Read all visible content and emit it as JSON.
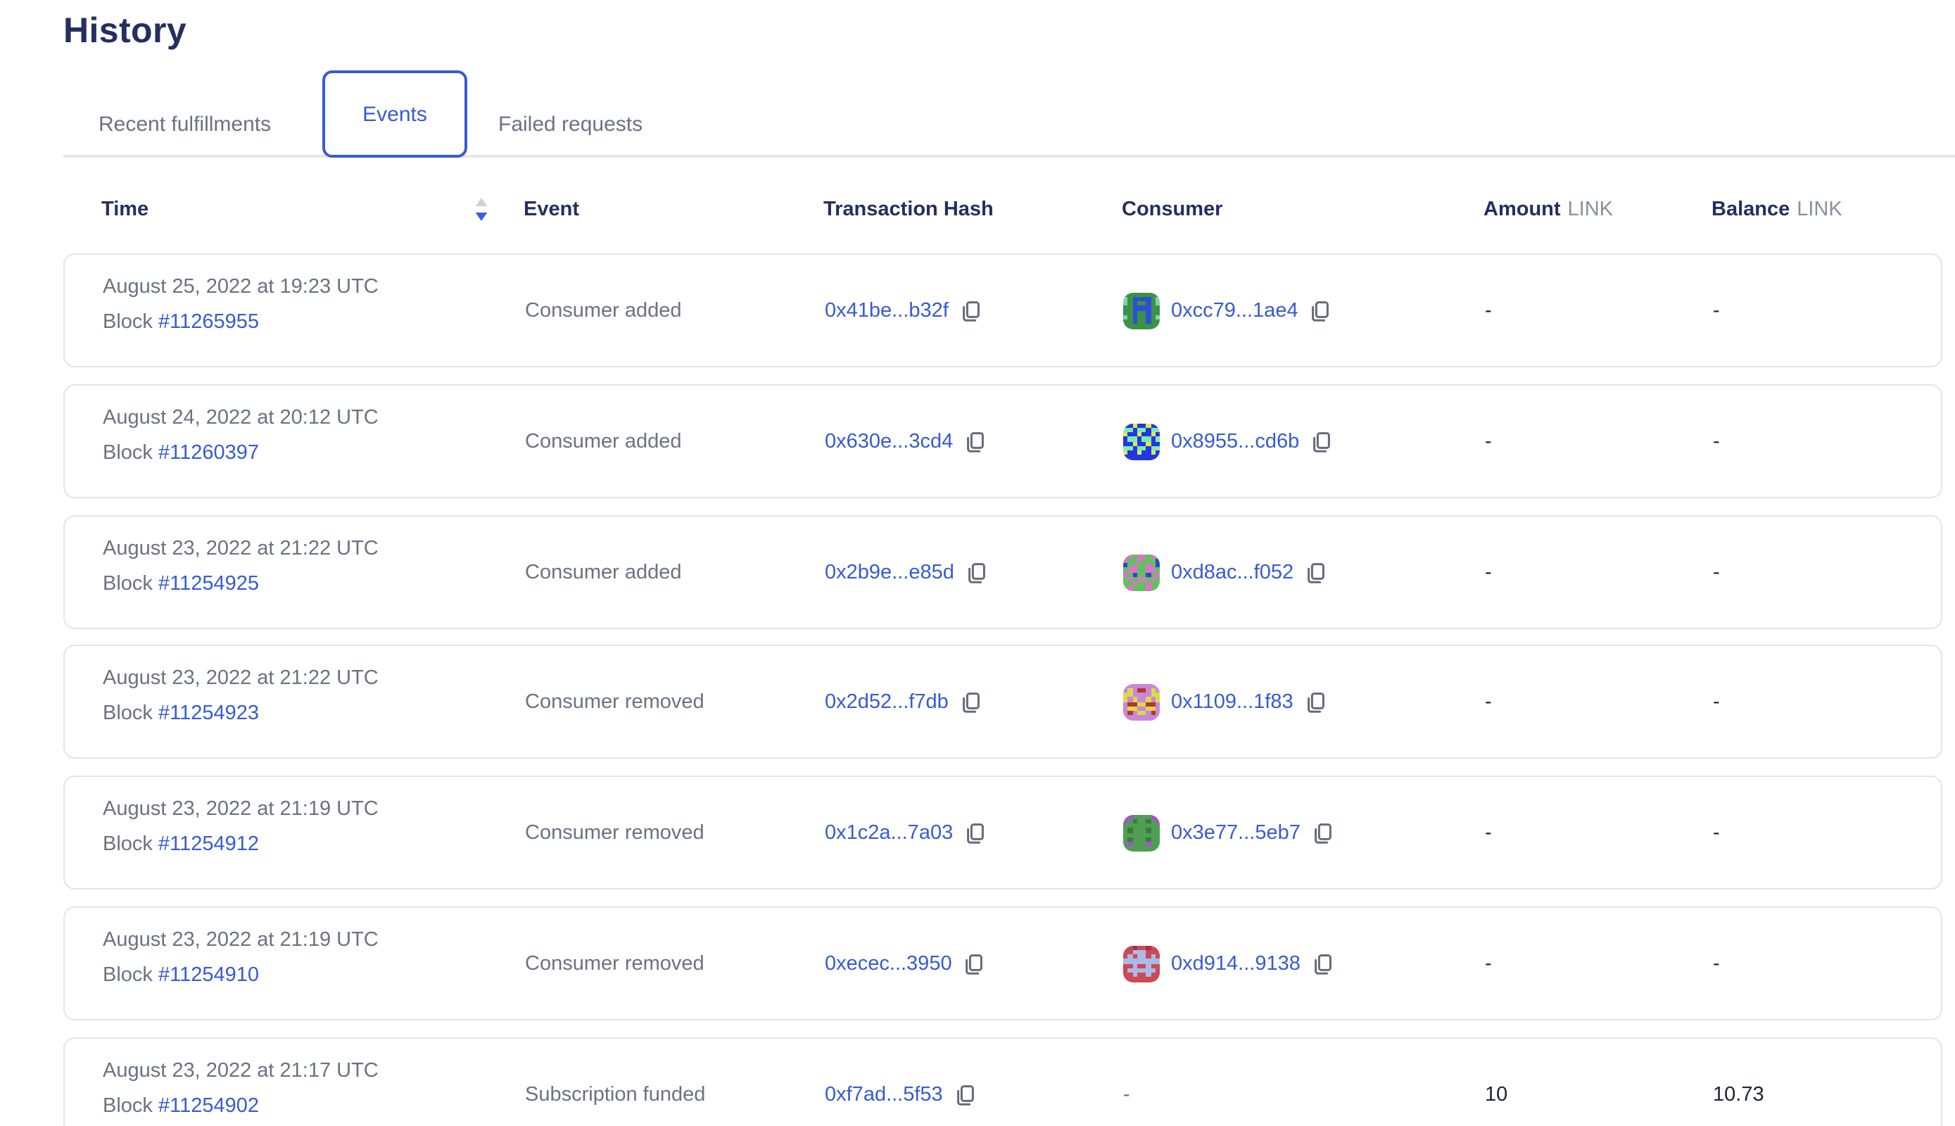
{
  "page": {
    "title": "History"
  },
  "colors": {
    "accent_blue": "#375bd2",
    "heading_navy": "#252e61",
    "muted_gray": "#6b7280",
    "unit_gray": "#8a909d",
    "value_dark": "#1c2433",
    "card_border": "#e3e5e9"
  },
  "tabs": [
    {
      "label": "Recent fulfillments",
      "active": false
    },
    {
      "label": "Events",
      "active": true
    },
    {
      "label": "Failed requests",
      "active": false
    }
  ],
  "table": {
    "headers": {
      "time": "Time",
      "event": "Event",
      "tx": "Transaction Hash",
      "consumer": "Consumer",
      "amount": "Amount",
      "balance": "Balance",
      "unit": "LINK"
    },
    "sort": {
      "column": "Time",
      "direction": "desc"
    },
    "rows": [
      {
        "date": "August 25, 2022 at 19:23 UTC",
        "block_label": "Block",
        "block": "#11265955",
        "event": "Consumer added",
        "tx": "0x41be...b32f",
        "consumer": "0xcc79...1ae4",
        "avatar": "a1",
        "amount": "-",
        "balance": "-"
      },
      {
        "date": "August 24, 2022 at 20:12 UTC",
        "block_label": "Block",
        "block": "#11260397",
        "event": "Consumer added",
        "tx": "0x630e...3cd4",
        "consumer": "0x8955...cd6b",
        "avatar": "a2",
        "amount": "-",
        "balance": "-"
      },
      {
        "date": "August 23, 2022 at 21:22 UTC",
        "block_label": "Block",
        "block": "#11254925",
        "event": "Consumer added",
        "tx": "0x2b9e...e85d",
        "consumer": "0xd8ac...f052",
        "avatar": "a3",
        "amount": "-",
        "balance": "-"
      },
      {
        "date": "August 23, 2022 at 21:22 UTC",
        "block_label": "Block",
        "block": "#11254923",
        "event": "Consumer removed",
        "tx": "0x2d52...f7db",
        "consumer": "0x1109...1f83",
        "avatar": "a4",
        "amount": "-",
        "balance": "-"
      },
      {
        "date": "August 23, 2022 at 21:19 UTC",
        "block_label": "Block",
        "block": "#11254912",
        "event": "Consumer removed",
        "tx": "0x1c2a...7a03",
        "consumer": "0x3e77...5eb7",
        "avatar": "a5",
        "amount": "-",
        "balance": "-"
      },
      {
        "date": "August 23, 2022 at 21:19 UTC",
        "block_label": "Block",
        "block": "#11254910",
        "event": "Consumer removed",
        "tx": "0xecec...3950",
        "consumer": "0xd914...9138",
        "avatar": "a6",
        "amount": "-",
        "balance": "-"
      },
      {
        "date": "August 23, 2022 at 21:17 UTC",
        "block_label": "Block",
        "block": "#11254902",
        "event": "Subscription funded",
        "tx": "0xf7ad...5f53",
        "consumer": "-",
        "avatar": null,
        "amount": "10",
        "balance": "10.73"
      }
    ]
  },
  "avatars": {
    "a1": {
      "palette": {
        "g": "#3c9247",
        "b": "#2c50d4",
        "t": "#7fd3ae"
      },
      "grid": [
        "gggggggg",
        "tgbbbbgt",
        "tgbggbgt",
        "ggbbbbgg",
        "ggbggbgg",
        "tgbggbgt",
        "ggbggbgg",
        "gggggggg"
      ]
    },
    "a2": {
      "palette": {
        "b": "#2336e0",
        "y": "#e3e657",
        "m": "#7deab0"
      },
      "grid": [
        "bbybbybb",
        "mmbmmbmm",
        "ybbybbyb",
        "bmmbmmbm",
        "bbybbybb",
        "mmbmmbmm",
        "ybbybbyb",
        "bbbbbbbb"
      ]
    },
    "a3": {
      "palette": {
        "g": "#5fc25f",
        "p": "#e072c8",
        "b": "#2b49cc",
        "d": "#16324e"
      },
      "grid": [
        "gpgppgpg",
        "pggpgggb",
        "bgpggpgb",
        "gppggppg",
        "pgbggbgp",
        "gpgppgpg",
        "ggpggpgg",
        "gpgggpgg"
      ]
    },
    "a4": {
      "palette": {
        "o": "#c987d8",
        "y": "#dcd84e",
        "r": "#b2372c"
      },
      "grid": [
        "oooooooo",
        "oyorroyo",
        "yyooooyy",
        "yoyooyoy",
        "orryyrro",
        "oyyooyyo",
        "oroyyoro",
        "oooooooo"
      ]
    },
    "a5": {
      "palette": {
        "g": "#4f9e52",
        "p": "#b446e0",
        "d": "#3b7a3f"
      },
      "grid": [
        "ppggggpp",
        "pgdggdgp",
        "gggggggg",
        "gdgggdgg",
        "gggggggg",
        "gdgggdgg",
        "gpgggpgg",
        "gggggggg"
      ]
    },
    "a6": {
      "palette": {
        "r": "#cb4a55",
        "l": "#a9bae6",
        "d": "#a2333f"
      },
      "grid": [
        "rrdrrdrr",
        "rrlllrrr",
        "rlrllrlr",
        "llllllll",
        "rrlrrlrr",
        "rllllllr",
        "rrlrrlrr",
        "rrrrrrrr"
      ]
    }
  }
}
